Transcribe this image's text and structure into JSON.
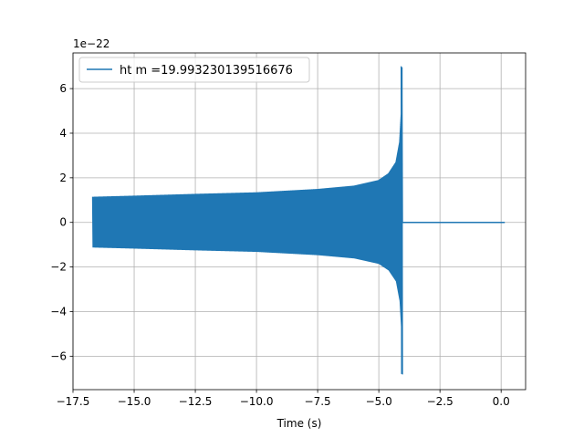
{
  "chart_data": {
    "type": "line",
    "title": "",
    "xlabel": "Time (s)",
    "ylabel": "",
    "y_offset_label": "1e−22",
    "xlim": [
      -17.5,
      1.0
    ],
    "ylim": [
      -7.5,
      7.6
    ],
    "xticks": [
      -17.5,
      -15.0,
      -12.5,
      -10.0,
      -7.5,
      -5.0,
      -2.5,
      0.0
    ],
    "xtick_labels": [
      "−17.5",
      "−15.0",
      "−12.5",
      "−10.0",
      "−7.5",
      "−5.0",
      "−2.5",
      "0.0"
    ],
    "yticks": [
      -6,
      -4,
      -2,
      0,
      2,
      4,
      6
    ],
    "ytick_labels": [
      "−6",
      "−4",
      "−2",
      "0",
      "2",
      "4",
      "6"
    ],
    "grid": true,
    "legend_position": "top-left",
    "series": [
      {
        "name": "ht m =19.993230139516676",
        "color": "#1f77b4",
        "t_start": -16.7,
        "t_merger": -4.05,
        "t_end": 0.15,
        "envelope_t": [
          -16.7,
          -15.0,
          -12.5,
          -10.0,
          -7.5,
          -6.0,
          -5.0,
          -4.6,
          -4.3,
          -4.15,
          -4.08,
          -4.05
        ],
        "envelope_amp": [
          1.15,
          1.2,
          1.28,
          1.35,
          1.5,
          1.65,
          1.9,
          2.2,
          2.7,
          3.6,
          5.0,
          7.0
        ],
        "min_peak": -6.8,
        "max_peak": 7.0
      }
    ]
  }
}
